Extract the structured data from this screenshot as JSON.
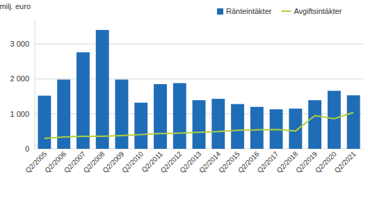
{
  "chart_data": {
    "type": "bar",
    "y_label": "milj. euro",
    "categories": [
      "Q2/2005",
      "Q2/2006",
      "Q2/2007",
      "Q2/2008",
      "Q2/2009",
      "Q2/2010",
      "Q2/2011",
      "Q2/2012",
      "Q2/2013",
      "Q2/2014",
      "Q2/2015",
      "Q2/2016",
      "Q2/2017",
      "Q2/2018",
      "Q2/2019",
      "Q2/2020",
      "Q2/2021"
    ],
    "series": [
      {
        "name": "Ränteintäkter",
        "type": "bar",
        "color": "#1f6db6",
        "values": [
          1520,
          1980,
          2760,
          3400,
          1980,
          1320,
          1850,
          1880,
          1390,
          1430,
          1280,
          1200,
          1130,
          1150,
          1390,
          1660,
          1530
        ]
      },
      {
        "name": "Avgiftsintäkter",
        "type": "line",
        "color": "#b2cf3a",
        "values": [
          300,
          340,
          360,
          360,
          380,
          410,
          440,
          450,
          470,
          490,
          530,
          540,
          550,
          510,
          950,
          860,
          1040
        ]
      }
    ],
    "ylim": [
      0,
      3700
    ],
    "yticks": [
      0,
      {
        "value": 1000,
        "label": "1 000"
      },
      {
        "value": 2000,
        "label": "2 000"
      },
      {
        "value": 3000,
        "label": "3 000"
      }
    ],
    "grid": true,
    "legend": "top-right"
  }
}
